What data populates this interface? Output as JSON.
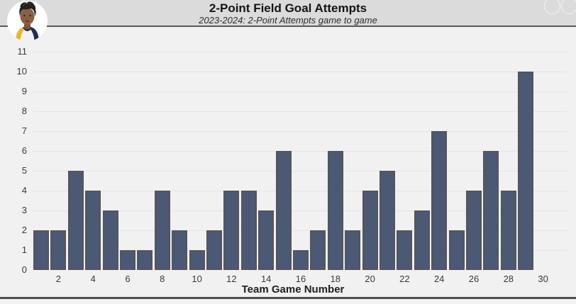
{
  "header": {
    "title": "2-Point Field Goal Attempts",
    "subtitle": "2023-2024: 2-Point Attempts game to game"
  },
  "chart_data": {
    "type": "bar",
    "title": "2-Point Field Goal Attempts",
    "subtitle": "2023-2024: 2-Point Attempts game to game",
    "xlabel": "Team Game Number",
    "ylabel": "",
    "x": [
      1,
      2,
      3,
      4,
      5,
      6,
      7,
      8,
      9,
      10,
      11,
      12,
      13,
      14,
      15,
      16,
      17,
      18,
      19,
      20,
      21,
      22,
      23,
      24,
      25,
      26,
      27,
      28,
      29
    ],
    "values": [
      2,
      2,
      5,
      4,
      3,
      1,
      1,
      4,
      2,
      1,
      2,
      4,
      4,
      3,
      6,
      1,
      2,
      6,
      2,
      4,
      5,
      2,
      3,
      7,
      2,
      4,
      6,
      4,
      10
    ],
    "ylim": [
      0,
      11
    ],
    "yticks": [
      0,
      1,
      2,
      3,
      4,
      5,
      6,
      7,
      8,
      9,
      10,
      11
    ],
    "xticks": [
      2,
      4,
      6,
      8,
      10,
      12,
      14,
      16,
      18,
      20,
      22,
      24,
      26,
      28,
      30
    ],
    "grid": "horizontal",
    "legend": "none",
    "colors": {
      "bar_fill": "#4b5975",
      "bar_border": "#54555a",
      "plot_background": "#f1f1f2",
      "header_background": "#dbdbdb",
      "gridline": "#e5e5e7",
      "text": "#3a3a3a"
    }
  }
}
